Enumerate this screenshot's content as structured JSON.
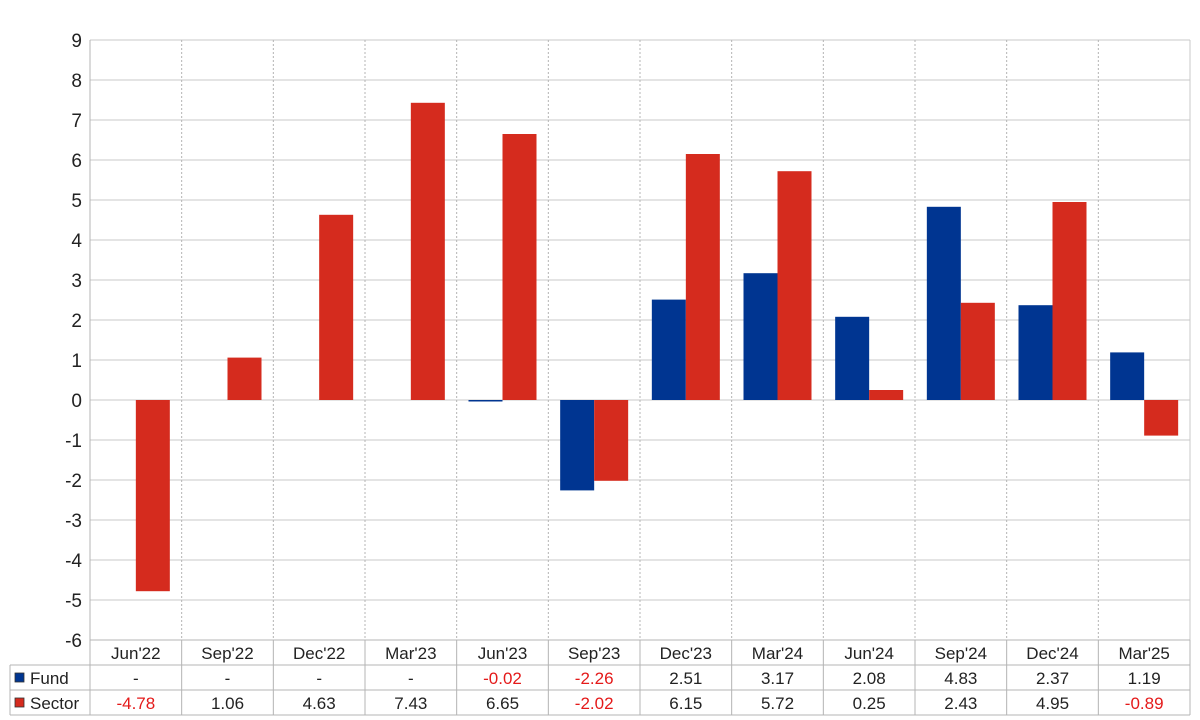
{
  "chart_data": {
    "type": "bar",
    "categories": [
      "Jun'22",
      "Sep'22",
      "Dec'22",
      "Mar'23",
      "Jun'23",
      "Sep'23",
      "Dec'23",
      "Mar'24",
      "Jun'24",
      "Sep'24",
      "Dec'24",
      "Mar'25"
    ],
    "series": [
      {
        "name": "Fund",
        "color": "#003591",
        "values": [
          null,
          null,
          null,
          null,
          -0.02,
          -2.26,
          2.51,
          3.17,
          2.08,
          4.83,
          2.37,
          1.19
        ],
        "table_values": [
          "-",
          "-",
          "-",
          "-",
          "-0.02",
          "-2.26",
          "2.51",
          "3.17",
          "2.08",
          "4.83",
          "2.37",
          "1.19"
        ]
      },
      {
        "name": "Sector",
        "color": "#d52b1e",
        "values": [
          -4.78,
          1.06,
          4.63,
          7.43,
          6.65,
          -2.02,
          6.15,
          5.72,
          0.25,
          2.43,
          4.95,
          -0.89
        ],
        "table_values": [
          "-4.78",
          "1.06",
          "4.63",
          "7.43",
          "6.65",
          "-2.02",
          "6.15",
          "5.72",
          "0.25",
          "2.43",
          "4.95",
          "-0.89"
        ]
      }
    ],
    "ylim": [
      -6,
      9
    ],
    "yticks": [
      -6,
      -5,
      -4,
      -3,
      -2,
      -1,
      0,
      1,
      2,
      3,
      4,
      5,
      6,
      7,
      8,
      9
    ],
    "grid": true,
    "negative_color": "#e41a1a",
    "legend": "data-table-left"
  }
}
